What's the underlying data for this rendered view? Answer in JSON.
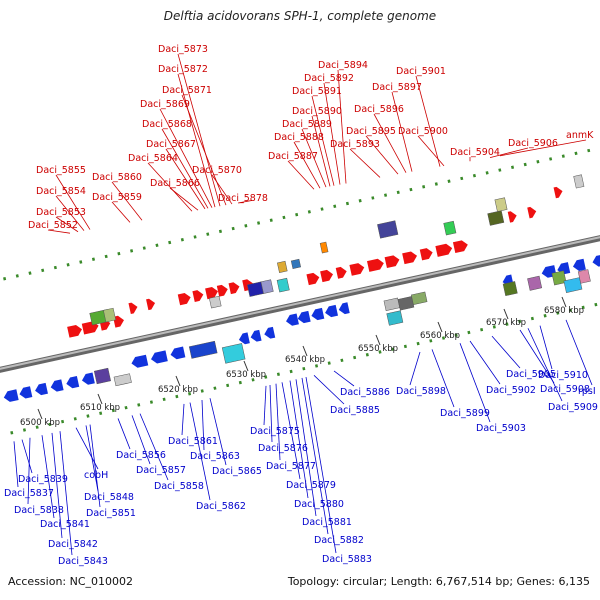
{
  "header": {
    "title": "Delftia acidovorans SPH-1, complete genome"
  },
  "footer": {
    "accession": "Accession: NC_010002",
    "summary": "Topology: circular; Length: 6,767,514 bp; Genes: 6,135"
  },
  "colors": {
    "top_label": "#cc0000",
    "bottom_label": "#0000cc",
    "backbone": "#888888"
  },
  "scale_ticks": [
    "6500 kbp",
    "6510 kbp",
    "6520 kbp",
    "6530 kbp",
    "6540 kbp",
    "6550 kbp",
    "6560 kbp",
    "6570 kbp",
    "6580 kbp"
  ],
  "top_labels": [
    "Daci_5873",
    "Daci_5872",
    "Daci_5871",
    "Daci_5869",
    "Daci_5868",
    "Daci_5867",
    "Daci_5864",
    "Daci_5870",
    "Daci_5866",
    "Daci_5855",
    "Daci_5860",
    "Daci_5854",
    "Daci_5859",
    "Daci_5853",
    "Daci_5852",
    "Daci_5878",
    "Daci_5894",
    "Daci_5892",
    "Daci_5891",
    "Daci_5890",
    "Daci_5889",
    "Daci_5888",
    "Daci_5887",
    "Daci_5901",
    "Daci_5897",
    "Daci_5896",
    "Daci_5895",
    "Daci_5893",
    "Daci_5900",
    "Daci_5904",
    "Daci_5906",
    "anmK"
  ],
  "bottom_labels": [
    "Daci_5839",
    "Daci_5837",
    "Daci_5838",
    "Daci_5841",
    "Daci_5842",
    "Daci_5843",
    "cobH",
    "Daci_5848",
    "Daci_5851",
    "Daci_5856",
    "Daci_5857",
    "Daci_5858",
    "Daci_5861",
    "Daci_5863",
    "Daci_5865",
    "Daci_5862",
    "Daci_5875",
    "Daci_5876",
    "Daci_5877",
    "Daci_5879",
    "Daci_5880",
    "Daci_5881",
    "Daci_5882",
    "Daci_5883",
    "Daci_5886",
    "Daci_5885",
    "Daci_5898",
    "Daci_5899",
    "Daci_5902",
    "Daci_5903",
    "Daci_5905",
    "Daci_5908",
    "Daci_5909",
    "Daci_5910",
    "rpsI"
  ]
}
